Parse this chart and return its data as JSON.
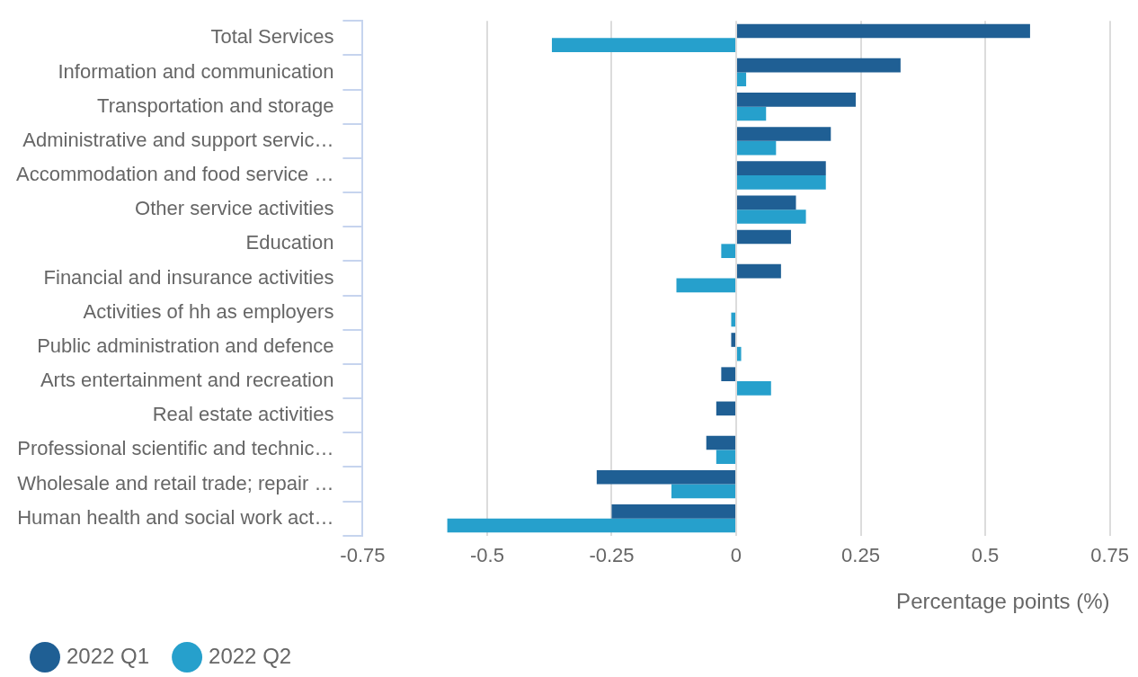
{
  "chart_data": {
    "type": "bar",
    "orientation": "horizontal",
    "xlabel": "Percentage points (%)",
    "categories": [
      "Total Services",
      "Information and communication",
      "Transportation and storage",
      "Administrative and support servic…",
      "Accommodation and food service …",
      "Other service activities",
      "Education",
      "Financial and insurance activities",
      "Activities of hh as employers",
      "Public administration and defence",
      "Arts entertainment and recreation",
      "Real estate activities",
      "Professional scientific and technic…",
      "Wholesale and retail trade; repair …",
      "Human health and social work act…"
    ],
    "series": [
      {
        "name": "2022 Q1",
        "color": "#1f5f94",
        "values": [
          0.59,
          0.33,
          0.24,
          0.19,
          0.18,
          0.12,
          0.11,
          0.09,
          null,
          -0.01,
          -0.03,
          -0.04,
          -0.06,
          -0.28,
          -0.25
        ]
      },
      {
        "name": "2022 Q2",
        "color": "#26a0cc",
        "values": [
          -0.37,
          0.02,
          0.06,
          0.08,
          0.18,
          0.14,
          -0.03,
          -0.12,
          -0.01,
          0.01,
          0.07,
          null,
          -0.04,
          -0.13,
          -0.58
        ]
      }
    ],
    "xlim": [
      -0.75,
      0.75
    ],
    "xticks": [
      -0.75,
      -0.5,
      -0.25,
      0,
      0.25,
      0.5,
      0.75
    ],
    "grid": "x",
    "legend": "bottom left"
  }
}
